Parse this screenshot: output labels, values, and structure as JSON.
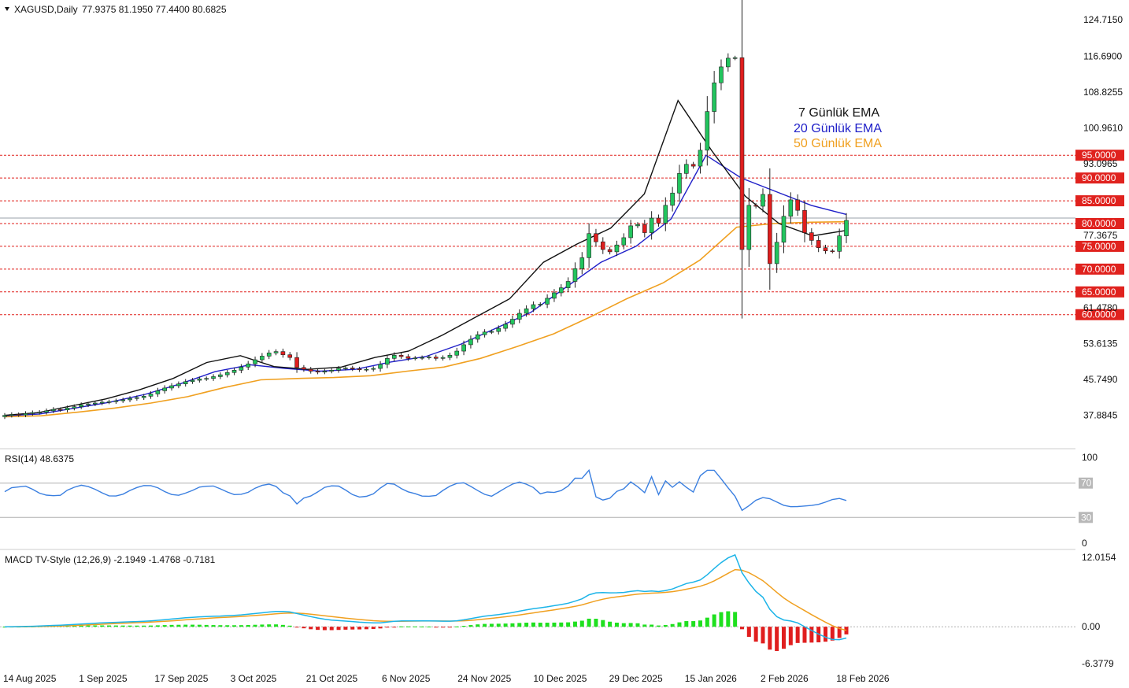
{
  "chart_data": [
    {
      "type": "candlestick",
      "title": "XAGUSD,Daily",
      "ohlc_text": "77.9375 81.1950 77.4400 80.6825",
      "ylim": [
        33.0,
        127.0
      ],
      "y_ticks": [
        "124.7150",
        "116.6900",
        "108.8255",
        "100.9610",
        "93.0965",
        "77.3675",
        "61.4780",
        "53.6135",
        "45.7490",
        "37.8845"
      ],
      "x_tick_labels": [
        "14 Aug 2025",
        "1 Sep 2025",
        "17 Sep 2025",
        "3 Oct 2025",
        "21 Oct 2025",
        "6 Nov 2025",
        "24 Nov 2025",
        "10 Dec 2025",
        "29 Dec 2025",
        "15 Jan 2026",
        "2 Feb 2026",
        "18 Feb 2026"
      ],
      "horizontal_levels": [
        "95.0000",
        "90.0000",
        "85.0000",
        "80.0000",
        "75.0000",
        "70.0000",
        "65.0000",
        "60.0000"
      ],
      "level_color": "#e0221e",
      "legend": [
        {
          "name": "7 Günlük EMA",
          "color": "#111111"
        },
        {
          "name": "20 Günlük EMA",
          "color": "#1f1fc8"
        },
        {
          "name": "50 Günlük EMA",
          "color": "#f0a020"
        }
      ],
      "candles_approx_close": [
        37.9,
        38.1,
        38.0,
        38.3,
        38.5,
        38.6,
        38.9,
        39.2,
        39.1,
        39.5,
        39.8,
        40.2,
        40.4,
        40.6,
        40.8,
        40.9,
        41.1,
        41.3,
        41.6,
        41.8,
        42.1,
        42.6,
        43.3,
        43.9,
        44.4,
        44.8,
        45.3,
        45.6,
        45.9,
        46.0,
        46.4,
        46.8,
        47.3,
        47.8,
        48.5,
        49.2,
        50.1,
        50.9,
        51.6,
        51.9,
        51.2,
        50.6,
        48.4,
        48.0,
        47.6,
        47.4,
        47.6,
        47.8,
        48.2,
        48.3,
        48.1,
        47.9,
        48.0,
        48.2,
        49.1,
        50.4,
        51.1,
        50.8,
        50.4,
        50.5,
        50.6,
        50.7,
        50.4,
        50.6,
        51.1,
        52.0,
        53.4,
        54.6,
        55.6,
        56.2,
        56.3,
        57.0,
        57.9,
        59.0,
        60.3,
        61.3,
        62.2,
        62.3,
        63.6,
        64.8,
        65.9,
        67.3,
        70.1,
        72.5,
        77.8,
        76.0,
        74.3,
        73.8,
        75.3,
        76.9,
        79.5,
        79.8,
        78.0,
        81.2,
        80.1,
        84.0,
        86.7,
        91.0,
        93.0,
        92.6,
        96.1,
        104.6,
        110.9,
        114.4,
        116.3,
        116.4,
        74.3,
        84.0,
        83.8,
        86.4,
        71.2,
        75.9,
        81.6,
        85.2,
        82.9,
        78.0,
        76.3,
        74.7,
        74.0,
        73.9,
        77.3,
        80.7
      ],
      "ema7_sample": [
        37.9,
        38.5,
        40.0,
        41.5,
        43.5,
        46.0,
        49.5,
        51.0,
        48.6,
        48.0,
        48.5,
        50.6,
        52.0,
        55.5,
        59.5,
        63.5,
        71.5,
        75.5,
        79.0,
        86.5,
        107.0,
        96.0,
        86.0,
        80.0,
        77.3,
        78.5
      ],
      "ema20_sample": [
        37.8,
        38.2,
        39.5,
        40.8,
        42.5,
        44.8,
        47.5,
        49.0,
        48.2,
        47.6,
        48.0,
        49.6,
        50.8,
        53.5,
        57.0,
        60.5,
        66.0,
        71.5,
        75.0,
        81.0,
        95.0,
        90.0,
        87.0,
        84.0,
        82.0
      ],
      "ema50_sample": [
        37.6,
        37.8,
        38.6,
        39.5,
        40.6,
        42.0,
        44.0,
        45.7,
        46.0,
        46.2,
        46.6,
        47.6,
        48.5,
        50.4,
        53.0,
        55.8,
        59.5,
        63.5,
        67.0,
        72.0,
        79.2,
        80.0,
        80.3,
        80.4
      ]
    },
    {
      "type": "line",
      "title": "RSI(14) 48.6375",
      "y_ticks": [
        "100",
        "70",
        "30",
        "0"
      ],
      "ylim": [
        0,
        100
      ],
      "levels": [
        70,
        30
      ],
      "series": [
        {
          "name": "RSI(14)",
          "color": "#3a7fe0"
        }
      ]
    },
    {
      "type": "line",
      "title": "MACD TV-Style (12,26,9) -2.1949 -1.4768 -0.7181",
      "y_ticks": [
        "12.0154",
        "0.00",
        "-6.3779"
      ],
      "ylim": [
        -6.3779,
        12.0154
      ],
      "series": [
        {
          "name": "MACD",
          "color": "#1cb4e8"
        },
        {
          "name": "Signal",
          "color": "#f0a020"
        },
        {
          "name": "Histogram",
          "color_pos": "#1ee01e",
          "color_neg": "#e01e1e"
        }
      ]
    }
  ]
}
